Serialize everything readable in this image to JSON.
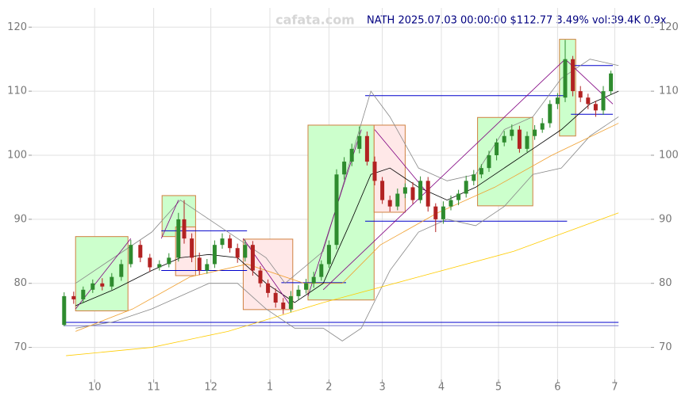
{
  "chart_data": {
    "type": "candlestick",
    "title": "NATH 2025.07.03 00:00:00 $112.77 3.49% vol:39.4K 0.9x",
    "watermark": "cafata.com",
    "xlim": [
      -3,
      322
    ],
    "ylim": [
      65,
      123
    ],
    "y2lim": [
      65,
      123
    ],
    "xticks": [
      {
        "value": 30,
        "label": "10"
      },
      {
        "value": 61,
        "label": "11"
      },
      {
        "value": 91,
        "label": "12"
      },
      {
        "value": 122,
        "label": "1"
      },
      {
        "value": 153,
        "label": "2"
      },
      {
        "value": 181,
        "label": "3"
      },
      {
        "value": 212,
        "label": "4"
      },
      {
        "value": 242,
        "label": "5"
      },
      {
        "value": 273,
        "label": "6"
      },
      {
        "value": 303,
        "label": "7"
      }
    ],
    "yticks": [
      70,
      80,
      90,
      100,
      110,
      120
    ],
    "y2ticks": [
      70,
      80,
      90,
      100,
      110,
      120
    ],
    "grid": true,
    "up_color": "#2e8b2e",
    "down_color": "#b22222",
    "candles": {
      "x": [
        14,
        19,
        24,
        29,
        34,
        39,
        44,
        49,
        54,
        59,
        64,
        69,
        74,
        77,
        81,
        85,
        89,
        93,
        97,
        101,
        105,
        109,
        113,
        117,
        121,
        125,
        129,
        133,
        137,
        141,
        145,
        149,
        153,
        157,
        161,
        165,
        169,
        173,
        177,
        181,
        185,
        189,
        193,
        197,
        201,
        205,
        209,
        213,
        217,
        221,
        225,
        229,
        233,
        237,
        241,
        245,
        249,
        253,
        257,
        261,
        265,
        269,
        273,
        277,
        281,
        285,
        289,
        293,
        297,
        301
      ],
      "open": [
        73.5,
        78,
        77.5,
        79,
        80,
        79.5,
        81,
        83,
        86,
        84,
        82.5,
        83,
        84,
        90,
        87,
        84,
        82,
        83,
        86,
        87,
        85.5,
        84,
        86,
        82,
        80,
        78.5,
        77,
        76,
        78,
        79,
        80,
        81,
        83,
        86,
        97,
        99,
        101,
        103,
        99,
        96,
        93,
        92,
        94,
        95,
        93,
        96,
        92,
        90,
        92,
        93,
        94,
        96,
        97,
        98,
        100,
        102,
        103,
        104,
        101,
        103,
        104,
        105,
        108,
        109,
        115,
        110,
        109,
        108,
        107,
        110
      ],
      "high": [
        78.6,
        78.7,
        79.5,
        80.6,
        80.8,
        81.6,
        83.7,
        86.8,
        86.7,
        84.6,
        83.6,
        84.7,
        91,
        93,
        87.8,
        84.8,
        83.8,
        86.7,
        87.8,
        87.6,
        86.2,
        86.8,
        86.6,
        82.7,
        80.6,
        79.2,
        77.7,
        78.8,
        79.7,
        80.7,
        81.8,
        83.6,
        86.7,
        97.8,
        99.7,
        101.8,
        104.5,
        103.7,
        99.8,
        96.6,
        93.7,
        94.8,
        95.6,
        95.8,
        96.7,
        96.6,
        92.5,
        92.8,
        93.7,
        94.6,
        96.8,
        97.7,
        98.6,
        100.7,
        102.6,
        103.8,
        104.8,
        104.6,
        103.7,
        104.7,
        105.8,
        108.6,
        109.7,
        118,
        115.5,
        110.8,
        109.6,
        108.5,
        110.8,
        113.2
      ],
      "low": [
        73.3,
        76.8,
        76.9,
        78.5,
        78.9,
        79,
        80.4,
        82.5,
        83.3,
        81.8,
        82,
        82.5,
        83.4,
        86.2,
        83.3,
        81.3,
        81.5,
        82.4,
        85.4,
        84.8,
        83.2,
        83.4,
        81.2,
        79.4,
        77.8,
        76.2,
        75.2,
        75.5,
        77.4,
        78.4,
        79.3,
        80.4,
        82.4,
        85.3,
        96.2,
        98.3,
        100.3,
        98.4,
        95.3,
        92.4,
        91.2,
        91.4,
        93.3,
        92.4,
        92.5,
        91.2,
        88,
        89.3,
        91.4,
        92.2,
        93.4,
        95.3,
        96.4,
        97.4,
        99.2,
        101.4,
        102.3,
        100.4,
        100.5,
        102.4,
        103.5,
        104.3,
        107.2,
        108.3,
        109.2,
        108.3,
        107.2,
        106,
        106.3,
        109.4
      ],
      "close": [
        78,
        77.5,
        79,
        80,
        79.5,
        81,
        83,
        86,
        84,
        82.5,
        83,
        84,
        90,
        87,
        84,
        82,
        83,
        86,
        87,
        85.5,
        84,
        86,
        82,
        80,
        78.5,
        77,
        76,
        78,
        79,
        80,
        81,
        83,
        86,
        97,
        99,
        101,
        103,
        99,
        96,
        93,
        92,
        94,
        95,
        93,
        96,
        92,
        90,
        92,
        93,
        94,
        96,
        97,
        98,
        100,
        102,
        103,
        104,
        101,
        103,
        104,
        105,
        108,
        109,
        115,
        110,
        109,
        108,
        107,
        110,
        112.77
      ]
    },
    "boxes": [
      {
        "color": "#ccffcc",
        "x": [
          20,
          47.5
        ],
        "y": [
          75.7,
          87.3
        ]
      },
      {
        "color": "#ccffcc",
        "x": [
          65.4,
          83
        ],
        "y": [
          87.3,
          93.7
        ]
      },
      {
        "color": "#ffe8e8",
        "x": [
          72.5,
          83
        ],
        "y": [
          81.2,
          88.8
        ]
      },
      {
        "color": "#ffe8e8",
        "x": [
          108,
          134
        ],
        "y": [
          75.9,
          86.9
        ]
      },
      {
        "color": "#ccffcc",
        "x": [
          142,
          176.7
        ],
        "y": [
          77.4,
          104.7
        ]
      },
      {
        "color": "#ffe8e8",
        "x": [
          176.7,
          193
        ],
        "y": [
          91.1,
          104.7
        ]
      },
      {
        "color": "#ccffcc",
        "x": [
          231,
          260
        ],
        "y": [
          92.1,
          105.9
        ]
      },
      {
        "color": "#ccffcc",
        "x": [
          274,
          282.5
        ],
        "y": [
          103,
          118.1
        ]
      }
    ],
    "lines": [
      {
        "color": "#888888",
        "x": [
          20,
          40,
          60,
          75,
          90,
          105,
          120,
          130,
          150,
          165,
          175,
          185,
          200,
          215,
          230,
          245,
          260,
          275,
          290,
          305
        ],
        "values": [
          80,
          84,
          88,
          93,
          90,
          87,
          84,
          80,
          85,
          100,
          110,
          106,
          98,
          96,
          97,
          104,
          106,
          112,
          115,
          114
        ]
      },
      {
        "color": "#888888",
        "x": [
          20,
          40,
          60,
          75,
          90,
          105,
          120,
          135,
          150,
          160,
          170,
          185,
          200,
          215,
          230,
          245,
          260,
          275,
          290,
          305
        ],
        "values": [
          73,
          74,
          76,
          78,
          80,
          80,
          76,
          73,
          73,
          71,
          73,
          82,
          88,
          90,
          89,
          92,
          97,
          98,
          103,
          106
        ]
      },
      {
        "color": "#ffcc00",
        "x": [
          15,
          60,
          100,
          150,
          200,
          250,
          305
        ],
        "values": [
          68.7,
          70,
          72.5,
          77,
          81,
          85,
          91
        ]
      },
      {
        "color": "#f0a030",
        "x": [
          20,
          50,
          80,
          110,
          140,
          160,
          180,
          210,
          240,
          270,
          305
        ],
        "values": [
          72.5,
          76,
          81,
          83,
          80,
          80,
          86,
          91,
          95,
          100,
          105
        ]
      },
      {
        "color": "#000000",
        "x": [
          20,
          40,
          60,
          75,
          90,
          105,
          120,
          135,
          150,
          165,
          175,
          185,
          200,
          215,
          230,
          245,
          260,
          275,
          290,
          305
        ],
        "values": [
          76.5,
          79,
          82,
          84,
          84.5,
          84,
          80,
          77,
          80,
          90,
          97,
          98,
          95,
          93,
          95,
          98,
          101,
          104,
          108,
          110
        ]
      }
    ],
    "trendlines": [
      {
        "color": "#800080",
        "x": [
          20,
          49
        ],
        "y": [
          76,
          87
        ]
      },
      {
        "color": "#800080",
        "x": [
          65,
          74
        ],
        "y": [
          87,
          93
        ]
      },
      {
        "color": "#800080",
        "x": [
          108,
          134
        ],
        "y": [
          87,
          76
        ]
      },
      {
        "color": "#800080",
        "x": [
          142,
          170
        ],
        "y": [
          78,
          104
        ]
      },
      {
        "color": "#800080",
        "x": [
          177,
          205
        ],
        "y": [
          104,
          94
        ]
      },
      {
        "color": "#800080",
        "x": [
          150,
          277
        ],
        "y": [
          79,
          115
        ]
      },
      {
        "color": "#800080",
        "x": [
          277,
          302
        ],
        "y": [
          115,
          108
        ]
      }
    ],
    "levels": [
      {
        "color": "#0000cc",
        "x": [
          172,
          278
        ],
        "y": 109.3
      },
      {
        "color": "#0000cc",
        "x": [
          172,
          278
        ],
        "y": 89.7
      },
      {
        "color": "#0000cc",
        "x": [
          65,
          110
        ],
        "y": 88.2
      },
      {
        "color": "#0000cc",
        "x": [
          65,
          110
        ],
        "y": 82
      },
      {
        "color": "#0000cc",
        "x": [
          128,
          162
        ],
        "y": 80.1
      },
      {
        "color": "#0000cc",
        "x": [
          280,
          302
        ],
        "y": 114
      },
      {
        "color": "#0000cc",
        "x": [
          280,
          302
        ],
        "y": 106.4
      },
      {
        "color": "#0000cc",
        "x": [
          14,
          305
        ],
        "y": 73.9
      },
      {
        "color": "#7070cc",
        "x": [
          14,
          305
        ],
        "y": 73.4
      }
    ]
  }
}
